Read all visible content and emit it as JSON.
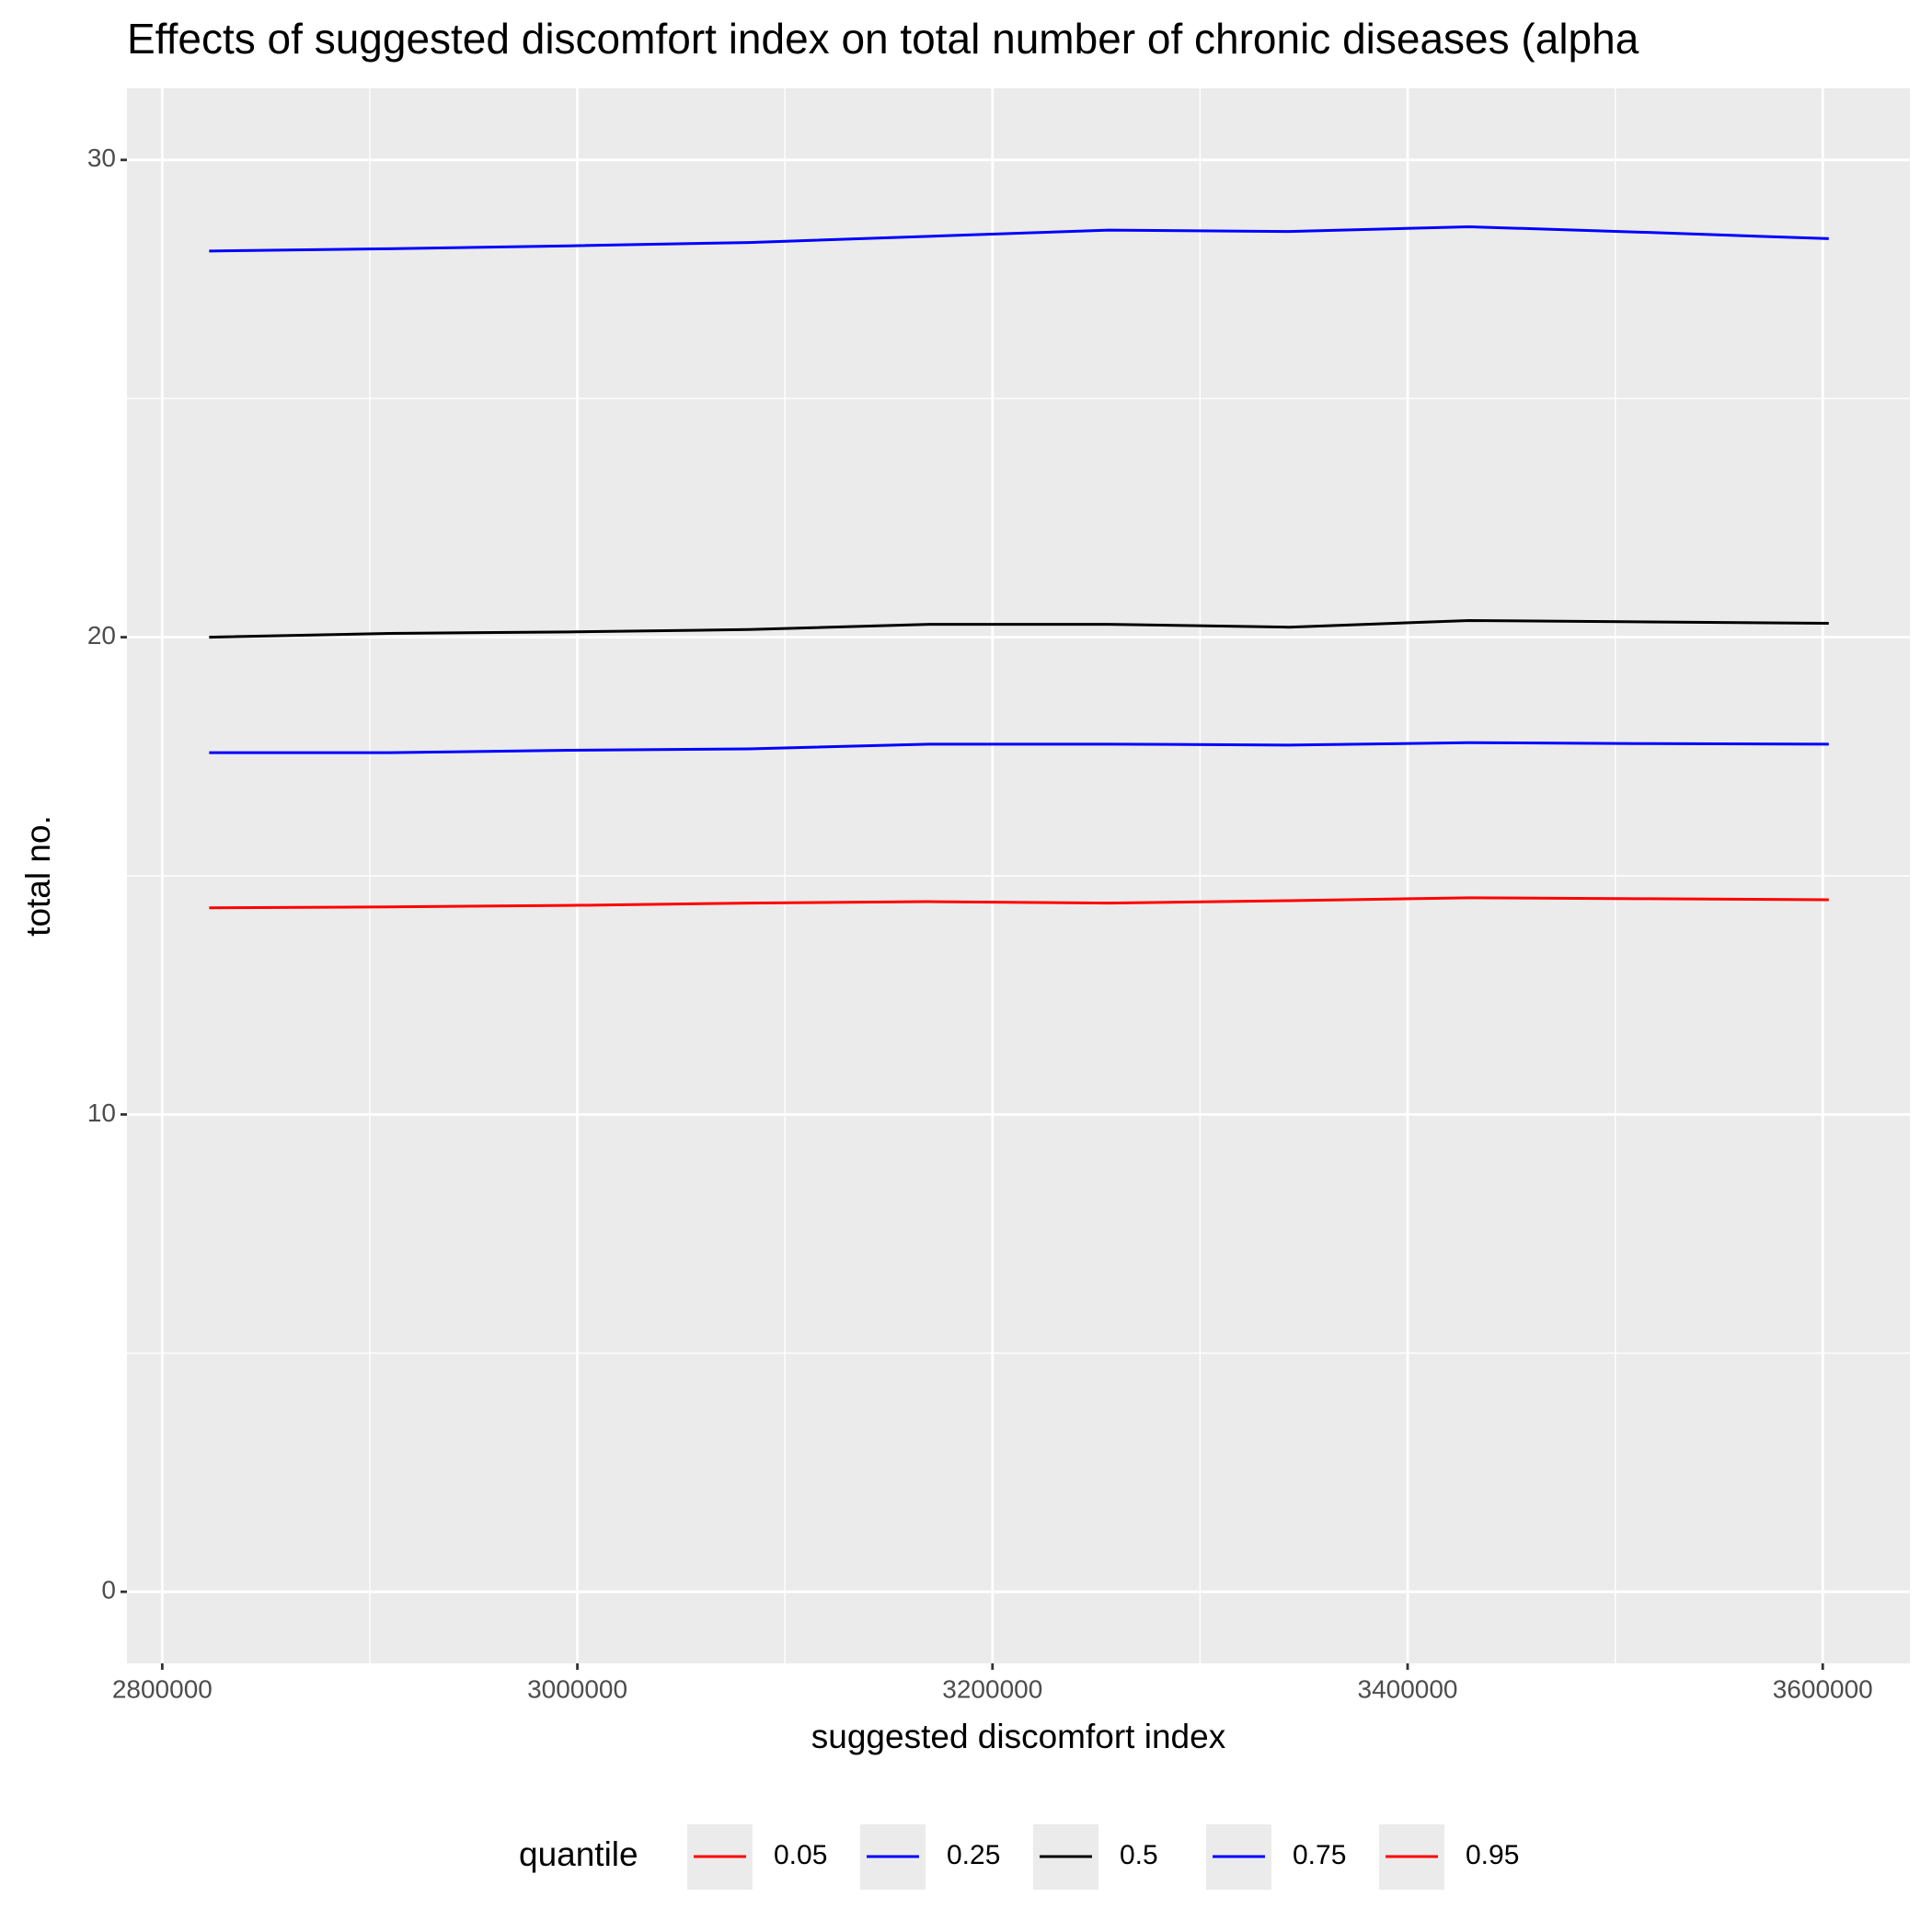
{
  "chart_data": {
    "type": "line",
    "title": "Effects of suggested discomfort index on total number of chronic diseases (alpha",
    "x_label": "suggested discomfort index",
    "y_label": "total no.",
    "legend_title": "quantile",
    "legend_position": "bottom",
    "grid": true,
    "x": [
      2822600,
      2909300,
      2996000,
      3082700,
      3169400,
      3256100,
      3342800,
      3429500,
      3516200,
      3602900
    ],
    "series": [
      {
        "name": "0.05",
        "color": "#ff0000",
        "values": [
          14.33,
          14.35,
          14.38,
          14.43,
          14.46,
          14.43,
          14.48,
          14.54,
          14.52,
          14.5
        ]
      },
      {
        "name": "0.25",
        "color": "#0000ff",
        "values": [
          17.58,
          17.58,
          17.63,
          17.66,
          17.76,
          17.76,
          17.74,
          17.79,
          17.77,
          17.76
        ]
      },
      {
        "name": "0.5",
        "color": "#000000",
        "values": [
          20.0,
          20.08,
          20.11,
          20.16,
          20.27,
          20.27,
          20.21,
          20.35,
          20.32,
          20.29
        ]
      },
      {
        "name": "0.75",
        "color": "#0000ff",
        "values": [
          28.09,
          28.14,
          28.2,
          28.27,
          28.4,
          28.53,
          28.5,
          28.6,
          28.48,
          28.35
        ]
      },
      {
        "name": "0.95",
        "color": "#ff0000",
        "values": [
          null,
          null,
          null,
          null,
          null,
          null,
          null,
          null,
          null,
          null
        ]
      }
    ],
    "xlim": [
      2783000,
      3642000
    ],
    "xticks": [
      2800000,
      3000000,
      3200000,
      3400000,
      3600000
    ],
    "xminorticks": [
      2900000,
      3100000,
      3300000,
      3500000
    ],
    "ylim": [
      -1.5,
      31.5
    ],
    "yticks": [
      0,
      10,
      20,
      30
    ],
    "yminorticks": [
      5,
      15,
      25
    ]
  }
}
